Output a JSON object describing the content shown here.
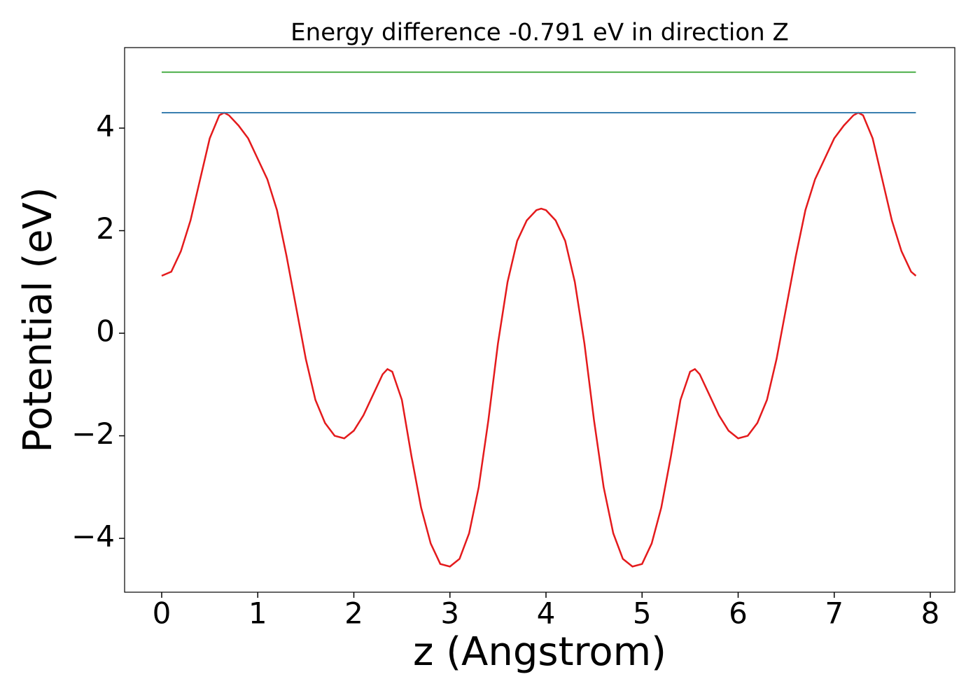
{
  "chart_data": {
    "type": "line",
    "title": "Energy difference -0.791 eV in direction Z",
    "xlabel": "z (Angstrom)",
    "ylabel": "Potential (eV)",
    "xlim": [
      -0.386,
      8.255
    ],
    "ylim": [
      -5.05,
      5.57
    ],
    "xticks": [
      0,
      1,
      2,
      3,
      4,
      5,
      6,
      7,
      8
    ],
    "yticks": [
      {
        "value": -4,
        "label": "−4"
      },
      {
        "value": -2,
        "label": "−2"
      },
      0,
      2,
      4
    ],
    "series": [
      {
        "color": "#e41a1c",
        "x": [
          0,
          0.1,
          0.2,
          0.3,
          0.4,
          0.5,
          0.6,
          0.65,
          0.7,
          0.8,
          0.9,
          1.0,
          1.1,
          1.2,
          1.3,
          1.4,
          1.5,
          1.6,
          1.7,
          1.8,
          1.9,
          2.0,
          2.1,
          2.2,
          2.3,
          2.35,
          2.4,
          2.5,
          2.6,
          2.7,
          2.8,
          2.9,
          3.0,
          3.1,
          3.2,
          3.3,
          3.4,
          3.5,
          3.6,
          3.7,
          3.8,
          3.9,
          3.95,
          4.0,
          4.1,
          4.2,
          4.3,
          4.4,
          4.5,
          4.6,
          4.7,
          4.8,
          4.9,
          5.0,
          5.1,
          5.2,
          5.3,
          5.4,
          5.5,
          5.55,
          5.6,
          5.7,
          5.8,
          5.9,
          6.0,
          6.1,
          6.2,
          6.3,
          6.4,
          6.5,
          6.6,
          6.7,
          6.8,
          6.9,
          7.0,
          7.1,
          7.2,
          7.25,
          7.3,
          7.4,
          7.5,
          7.6,
          7.7,
          7.8,
          7.85
        ],
        "values": [
          1.12,
          1.2,
          1.6,
          2.2,
          3.0,
          3.8,
          4.25,
          4.3,
          4.25,
          4.05,
          3.8,
          3.4,
          3.0,
          2.4,
          1.5,
          0.5,
          -0.5,
          -1.3,
          -1.75,
          -2.0,
          -2.05,
          -1.9,
          -1.6,
          -1.2,
          -0.8,
          -0.7,
          -0.75,
          -1.3,
          -2.4,
          -3.4,
          -4.1,
          -4.5,
          -4.55,
          -4.4,
          -3.9,
          -3.0,
          -1.7,
          -0.2,
          1.0,
          1.8,
          2.2,
          2.4,
          2.43,
          2.4,
          2.2,
          1.8,
          1.0,
          -0.2,
          -1.7,
          -3.0,
          -3.9,
          -4.4,
          -4.55,
          -4.5,
          -4.1,
          -3.4,
          -2.4,
          -1.3,
          -0.75,
          -0.7,
          -0.8,
          -1.2,
          -1.6,
          -1.9,
          -2.05,
          -2.0,
          -1.75,
          -1.3,
          -0.5,
          0.5,
          1.5,
          2.4,
          3.0,
          3.4,
          3.8,
          4.05,
          4.25,
          4.3,
          4.25,
          3.8,
          3.0,
          2.2,
          1.6,
          1.2,
          1.12
        ]
      },
      {
        "color": "#3a7fb0",
        "x": [
          0,
          7.85
        ],
        "values": [
          4.3,
          4.3
        ]
      },
      {
        "color": "#4daf4a",
        "x": [
          0,
          7.85
        ],
        "values": [
          5.09,
          5.09
        ]
      }
    ]
  }
}
